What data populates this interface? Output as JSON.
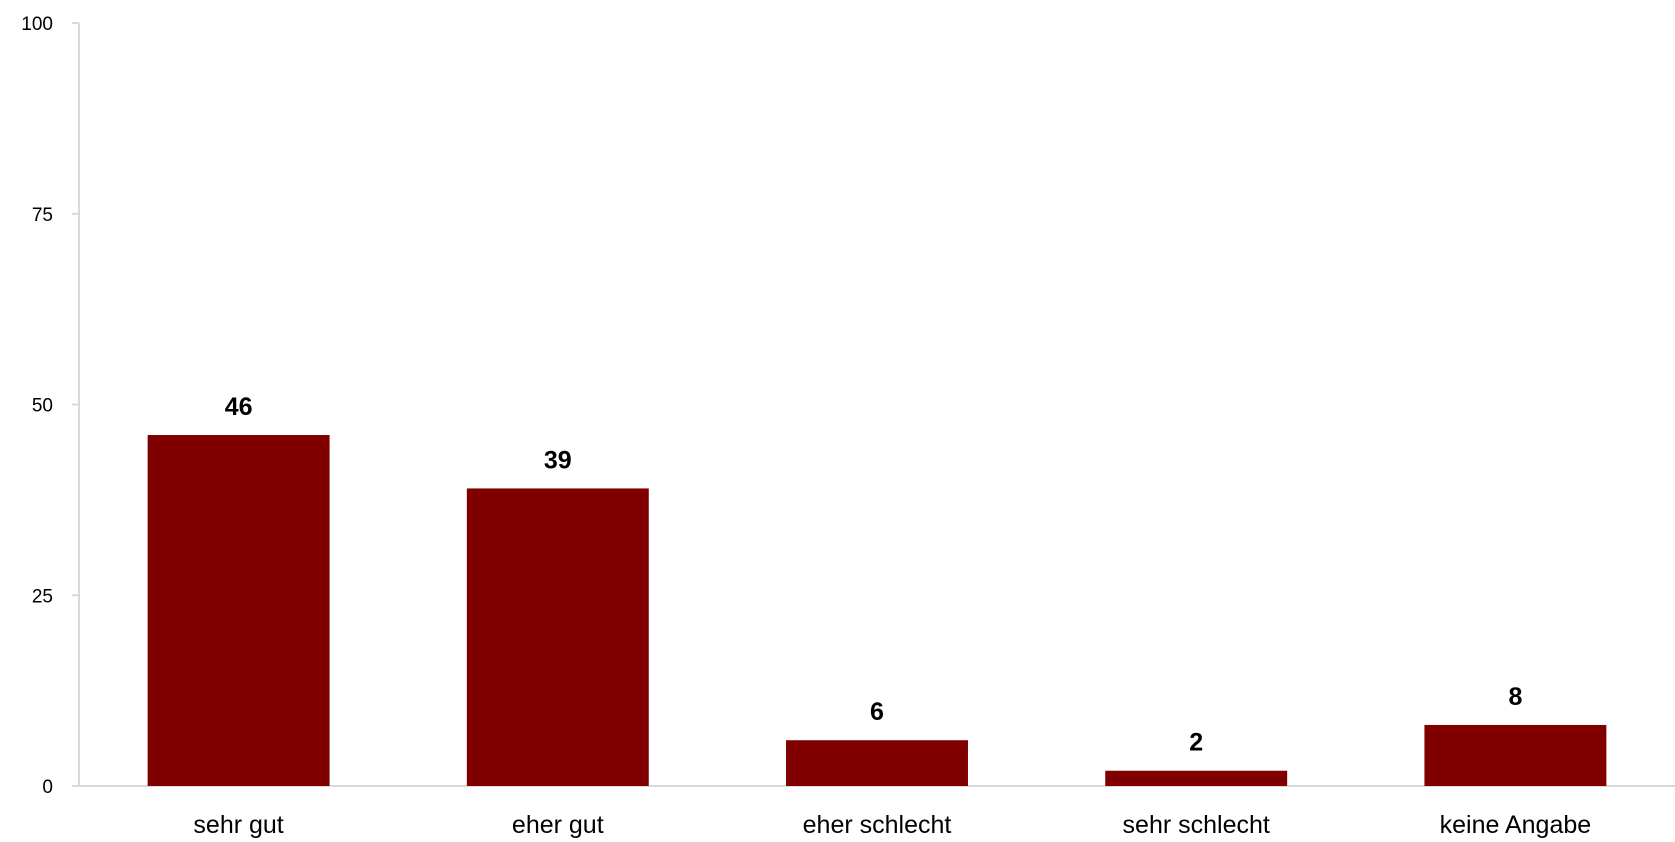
{
  "chart_data": {
    "type": "bar",
    "title": "",
    "xlabel": "",
    "ylabel": "",
    "categories": [
      "sehr gut",
      "eher gut",
      "eher schlecht",
      "sehr schlecht",
      "keine Angabe"
    ],
    "values": [
      46,
      39,
      6,
      2,
      8
    ],
    "data_labels": [
      "46",
      "39",
      "6",
      "2",
      "8"
    ],
    "ylim": [
      0,
      100
    ],
    "yticks": [
      0,
      25,
      50,
      75,
      100
    ],
    "grid": false,
    "legend": "none",
    "bar_color": "#800000",
    "axis_color": "#d9d9d9"
  }
}
